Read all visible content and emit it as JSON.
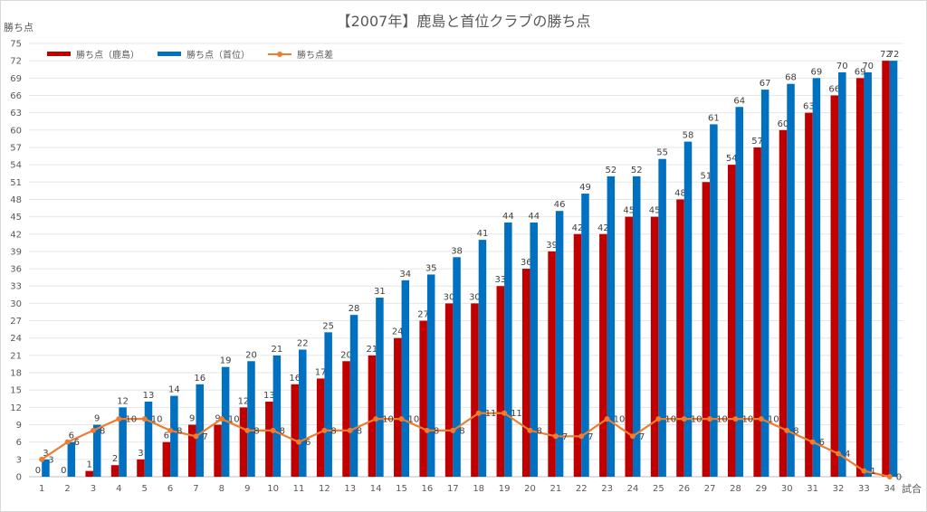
{
  "chart_data": {
    "type": "bar",
    "title": "【2007年】鹿島と首位クラブの勝ち点",
    "ylabel": "勝ち点",
    "xlabel": "試合",
    "ylim": [
      0,
      75
    ],
    "ytick_step": 3,
    "grid": true,
    "legend_position": "top-left",
    "categories": [
      "1",
      "2",
      "3",
      "4",
      "5",
      "6",
      "7",
      "8",
      "9",
      "10",
      "11",
      "12",
      "13",
      "14",
      "15",
      "16",
      "17",
      "18",
      "19",
      "20",
      "21",
      "22",
      "23",
      "24",
      "25",
      "26",
      "27",
      "28",
      "29",
      "30",
      "31",
      "32",
      "33",
      "34"
    ],
    "series": [
      {
        "name": "勝ち点（鹿島）",
        "kind": "bar",
        "color": "#C00000",
        "values": [
          0,
          0,
          1,
          2,
          3,
          6,
          9,
          9,
          12,
          13,
          16,
          17,
          20,
          21,
          24,
          27,
          30,
          30,
          33,
          36,
          39,
          42,
          42,
          45,
          45,
          48,
          51,
          54,
          57,
          60,
          63,
          66,
          69,
          72
        ]
      },
      {
        "name": "勝ち点（首位）",
        "kind": "bar",
        "color": "#0070C0",
        "values": [
          3,
          6,
          9,
          12,
          13,
          14,
          16,
          19,
          20,
          21,
          22,
          25,
          28,
          31,
          34,
          35,
          38,
          41,
          44,
          44,
          46,
          49,
          52,
          52,
          55,
          58,
          61,
          64,
          67,
          68,
          69,
          70,
          70,
          72
        ]
      },
      {
        "name": "勝ち点差",
        "kind": "line",
        "color": "#ED7D31",
        "values": [
          3,
          6,
          8,
          10,
          10,
          8,
          7,
          10,
          8,
          8,
          6,
          8,
          8,
          10,
          10,
          8,
          8,
          11,
          11,
          8,
          7,
          7,
          10,
          7,
          10,
          10,
          10,
          10,
          10,
          8,
          6,
          4,
          1,
          0
        ]
      }
    ]
  }
}
